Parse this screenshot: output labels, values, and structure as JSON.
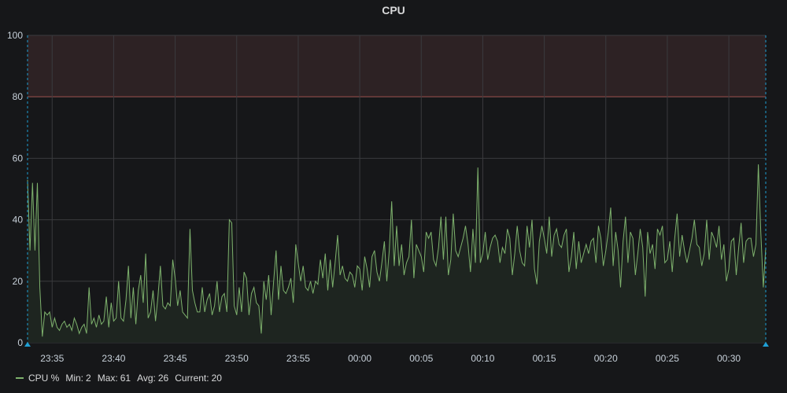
{
  "panel": {
    "title": "CPU"
  },
  "colors": {
    "background": "#161719",
    "grid": "#3a3b3e",
    "series": "#7eb26d",
    "series_fill": "#1e2520",
    "threshold_line": "#e24d42",
    "threshold_fill": "#2d2224",
    "time_marker": "#1f9fd4",
    "tick_text": "#c7d0d9"
  },
  "chart_data": {
    "type": "area",
    "title": "CPU",
    "ylim": [
      0,
      100
    ],
    "y_ticks": [
      0,
      20,
      40,
      60,
      80,
      100
    ],
    "x_range_minutes": [
      -27,
      33
    ],
    "x_ticks": [
      {
        "label": "23:35",
        "minute": -25
      },
      {
        "label": "23:40",
        "minute": -20
      },
      {
        "label": "23:45",
        "minute": -15
      },
      {
        "label": "23:50",
        "minute": -10
      },
      {
        "label": "23:55",
        "minute": -5
      },
      {
        "label": "00:00",
        "minute": 0
      },
      {
        "label": "00:05",
        "minute": 5
      },
      {
        "label": "00:10",
        "minute": 10
      },
      {
        "label": "00:15",
        "minute": 15
      },
      {
        "label": "00:20",
        "minute": 20
      },
      {
        "label": "00:25",
        "minute": 25
      },
      {
        "label": "00:30",
        "minute": 30
      }
    ],
    "threshold": {
      "value": 80
    },
    "grid": true,
    "legend_position": "bottom-left",
    "series": [
      {
        "name": "CPU %",
        "stats": {
          "min": 2,
          "max": 61,
          "avg": 26,
          "current": 20
        },
        "minutes": [
          -27.0,
          -26.8,
          -26.6,
          -26.4,
          -26.2,
          -26.0,
          -25.8,
          -25.6,
          -25.4,
          -25.2,
          -25.0,
          -24.8,
          -24.6,
          -24.4,
          -24.2,
          -24.0,
          -23.8,
          -23.6,
          -23.4,
          -23.2,
          -23.0,
          -22.8,
          -22.6,
          -22.4,
          -22.2,
          -22.0,
          -21.8,
          -21.6,
          -21.4,
          -21.2,
          -21.0,
          -20.8,
          -20.6,
          -20.4,
          -20.2,
          -20.0,
          -19.8,
          -19.6,
          -19.4,
          -19.2,
          -19.0,
          -18.8,
          -18.6,
          -18.4,
          -18.2,
          -18.0,
          -17.8,
          -17.6,
          -17.4,
          -17.2,
          -17.0,
          -16.8,
          -16.6,
          -16.4,
          -16.2,
          -16.0,
          -15.8,
          -15.6,
          -15.4,
          -15.2,
          -15.0,
          -14.8,
          -14.6,
          -14.4,
          -14.2,
          -14.0,
          -13.8,
          -13.6,
          -13.4,
          -13.2,
          -13.0,
          -12.8,
          -12.6,
          -12.4,
          -12.2,
          -12.0,
          -11.8,
          -11.6,
          -11.4,
          -11.2,
          -11.0,
          -10.8,
          -10.6,
          -10.4,
          -10.2,
          -10.0,
          -9.8,
          -9.6,
          -9.4,
          -9.2,
          -9.0,
          -8.8,
          -8.6,
          -8.4,
          -8.2,
          -8.0,
          -7.8,
          -7.6,
          -7.4,
          -7.2,
          -7.0,
          -6.8,
          -6.6,
          -6.4,
          -6.2,
          -6.0,
          -5.8,
          -5.6,
          -5.4,
          -5.2,
          -5.0,
          -4.8,
          -4.6,
          -4.4,
          -4.2,
          -4.0,
          -3.8,
          -3.6,
          -3.4,
          -3.2,
          -3.0,
          -2.8,
          -2.6,
          -2.4,
          -2.2,
          -2.0,
          -1.8,
          -1.6,
          -1.4,
          -1.2,
          -1.0,
          -0.8,
          -0.6,
          -0.4,
          -0.2,
          0.0,
          0.2,
          0.4,
          0.6,
          0.8,
          1.0,
          1.2,
          1.4,
          1.6,
          1.8,
          2.0,
          2.2,
          2.4,
          2.6,
          2.8,
          3.0,
          3.2,
          3.4,
          3.6,
          3.8,
          4.0,
          4.2,
          4.4,
          4.6,
          4.8,
          5.0,
          5.2,
          5.4,
          5.6,
          5.8,
          6.0,
          6.2,
          6.4,
          6.6,
          6.8,
          7.0,
          7.2,
          7.4,
          7.6,
          7.8,
          8.0,
          8.2,
          8.4,
          8.6,
          8.8,
          9.0,
          9.2,
          9.4,
          9.6,
          9.8,
          10.0,
          10.2,
          10.4,
          10.6,
          10.8,
          11.0,
          11.2,
          11.4,
          11.6,
          11.8,
          12.0,
          12.2,
          12.4,
          12.6,
          12.8,
          13.0,
          13.2,
          13.4,
          13.6,
          13.8,
          14.0,
          14.2,
          14.4,
          14.6,
          14.8,
          15.0,
          15.2,
          15.4,
          15.6,
          15.8,
          16.0,
          16.2,
          16.4,
          16.6,
          16.8,
          17.0,
          17.2,
          17.4,
          17.6,
          17.8,
          18.0,
          18.2,
          18.4,
          18.6,
          18.8,
          19.0,
          19.2,
          19.4,
          19.6,
          19.8,
          20.0,
          20.2,
          20.4,
          20.6,
          20.8,
          21.0,
          21.2,
          21.4,
          21.6,
          21.8,
          22.0,
          22.2,
          22.4,
          22.6,
          22.8,
          23.0,
          23.2,
          23.4,
          23.6,
          23.8,
          24.0,
          24.2,
          24.4,
          24.6,
          24.8,
          25.0,
          25.2,
          25.4,
          25.6,
          25.8,
          26.0,
          26.2,
          26.4,
          26.6,
          26.8,
          27.0,
          27.2,
          27.4,
          27.6,
          27.8,
          28.0,
          28.2,
          28.4,
          28.6,
          28.8,
          29.0,
          29.2,
          29.4,
          29.6,
          29.8,
          30.0,
          30.2,
          30.4,
          30.6,
          30.8,
          31.0,
          31.2,
          31.4,
          31.6,
          31.8,
          32.0,
          32.2,
          32.4,
          32.6,
          32.8,
          33.0
        ],
        "values": [
          53,
          30,
          52,
          30,
          52,
          18,
          2,
          10,
          9,
          10,
          5,
          8,
          5,
          4,
          6,
          7,
          5,
          6,
          4,
          8,
          6,
          3,
          5,
          6,
          3,
          18,
          6,
          8,
          5,
          9,
          6,
          7,
          15,
          5,
          13,
          7,
          8,
          20,
          8,
          7,
          14,
          25,
          8,
          18,
          6,
          17,
          22,
          13,
          29,
          8,
          10,
          17,
          7,
          15,
          25,
          12,
          11,
          13,
          12,
          27,
          21,
          12,
          17,
          10,
          9,
          8,
          37,
          17,
          13,
          10,
          10,
          18,
          10,
          14,
          16,
          9,
          12,
          20,
          10,
          15,
          16,
          10,
          40,
          39,
          12,
          9,
          18,
          10,
          23,
          21,
          9,
          16,
          18,
          13,
          12,
          3,
          20,
          14,
          22,
          9,
          20,
          30,
          14,
          25,
          17,
          16,
          18,
          21,
          13,
          32,
          26,
          20,
          25,
          18,
          17,
          20,
          16,
          20,
          19,
          27,
          21,
          29,
          17,
          27,
          18,
          26,
          35,
          22,
          25,
          21,
          20,
          23,
          22,
          18,
          25,
          24,
          17,
          28,
          24,
          18,
          28,
          30,
          23,
          20,
          26,
          33,
          20,
          30,
          46,
          25,
          38,
          25,
          32,
          22,
          26,
          28,
          40,
          21,
          32,
          30,
          28,
          23,
          36,
          34,
          36,
          27,
          25,
          31,
          41,
          27,
          41,
          22,
          27,
          42,
          30,
          28,
          31,
          34,
          38,
          32,
          23,
          37,
          26,
          57,
          26,
          29,
          36,
          27,
          31,
          34,
          35,
          33,
          26,
          31,
          29,
          37,
          34,
          22,
          29,
          38,
          30,
          26,
          25,
          38,
          31,
          40,
          24,
          19,
          33,
          38,
          34,
          29,
          41,
          28,
          35,
          37,
          32,
          31,
          35,
          37,
          23,
          28,
          36,
          24,
          33,
          26,
          29,
          32,
          29,
          33,
          34,
          26,
          38,
          34,
          25,
          30,
          36,
          44,
          25,
          36,
          30,
          18,
          33,
          41,
          26,
          36,
          34,
          22,
          29,
          37,
          31,
          15,
          36,
          29,
          32,
          24,
          37,
          35,
          38,
          26,
          27,
          33,
          23,
          34,
          42,
          28,
          35,
          30,
          26,
          30,
          34,
          40,
          32,
          31,
          25,
          29,
          40,
          27,
          36,
          34,
          31,
          38,
          27,
          32,
          20,
          24,
          33,
          34,
          22,
          31,
          39,
          26,
          33,
          34,
          34,
          28,
          32,
          58,
          36,
          18,
          31,
          29,
          35,
          33,
          28,
          30,
          33,
          37,
          34,
          31,
          28,
          29,
          37,
          30,
          45,
          31,
          28,
          30,
          39,
          30,
          44,
          31,
          36,
          37,
          33,
          26,
          39,
          28,
          47,
          24,
          33,
          22,
          61,
          20
        ]
      }
    ]
  },
  "legend": {
    "series_name": "CPU %",
    "min_label": "Min:",
    "min_value": "2",
    "max_label": "Max:",
    "max_value": "61",
    "avg_label": "Avg:",
    "avg_value": "26",
    "current_label": "Current:",
    "current_value": "20"
  }
}
